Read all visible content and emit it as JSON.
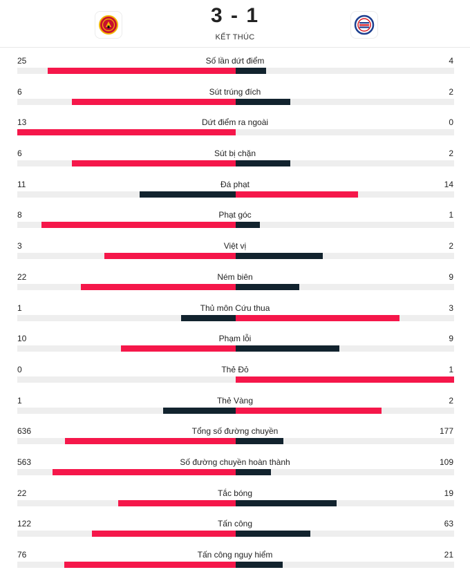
{
  "match": {
    "home_team": "Manchester United",
    "away_team": "Reading",
    "score": "3 - 1",
    "status": "KẾT THÚC"
  },
  "colors": {
    "leader": "#f5174a",
    "trailer": "#12232e",
    "track": "#eeeeee"
  },
  "stats": [
    {
      "label": "Số lần dứt điểm",
      "home": "25",
      "away": "4"
    },
    {
      "label": "Sút trúng đích",
      "home": "6",
      "away": "2"
    },
    {
      "label": "Dứt điểm ra ngoài",
      "home": "13",
      "away": "0"
    },
    {
      "label": "Sút bị chặn",
      "home": "6",
      "away": "2"
    },
    {
      "label": "Đá phạt",
      "home": "11",
      "away": "14"
    },
    {
      "label": "Phạt góc",
      "home": "8",
      "away": "1"
    },
    {
      "label": "Việt vị",
      "home": "3",
      "away": "2"
    },
    {
      "label": "Ném biên",
      "home": "22",
      "away": "9"
    },
    {
      "label": "Thủ môn Cứu thua",
      "home": "1",
      "away": "3"
    },
    {
      "label": "Phạm lỗi",
      "home": "10",
      "away": "9"
    },
    {
      "label": "Thẻ Đỏ",
      "home": "0",
      "away": "1"
    },
    {
      "label": "Thẻ Vàng",
      "home": "1",
      "away": "2"
    },
    {
      "label": "Tổng số đường chuyền",
      "home": "636",
      "away": "177"
    },
    {
      "label": "Số đường chuyền hoàn thành",
      "home": "563",
      "away": "109"
    },
    {
      "label": "Tắc bóng",
      "home": "22",
      "away": "19"
    },
    {
      "label": "Tấn công",
      "home": "122",
      "away": "63"
    },
    {
      "label": "Tấn công nguy hiểm",
      "home": "76",
      "away": "21"
    }
  ]
}
